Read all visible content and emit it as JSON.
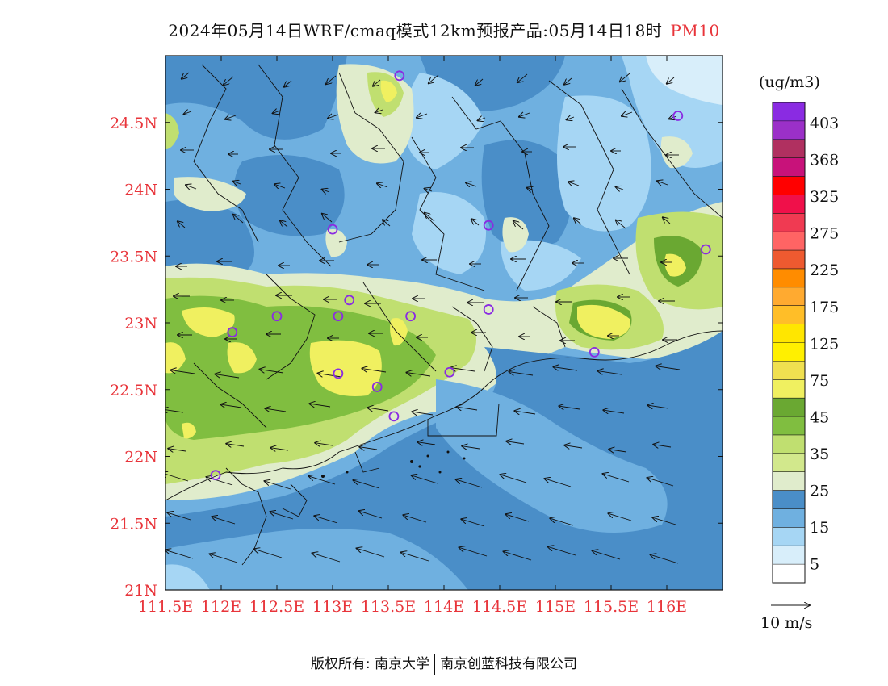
{
  "title": {
    "main": "2024年05月14日WRF/cmaq模式12km预报产品:05月14日18时",
    "species": "PM10"
  },
  "map": {
    "lon_ticks": [
      "111.5E",
      "112E",
      "112.5E",
      "113E",
      "113.5E",
      "114E",
      "114.5E",
      "115E",
      "115.5E",
      "116E"
    ],
    "lat_ticks": [
      "21N",
      "21.5N",
      "22N",
      "22.5N",
      "23N",
      "23.5N",
      "24N",
      "24.5N"
    ],
    "lon_range": [
      111.5,
      116.5
    ],
    "lat_range": [
      21.0,
      25.0
    ]
  },
  "legend": {
    "unit": "(ug/m3)",
    "levels": [
      "403",
      "368",
      "325",
      "275",
      "225",
      "175",
      "125",
      "75",
      "45",
      "35",
      "25",
      "15",
      "5"
    ],
    "colors": [
      "#8a2be2",
      "#9b30c8",
      "#b03060",
      "#c8127a",
      "#ff0000",
      "#f0104a",
      "#f03a52",
      "#ff6464",
      "#ee5a30",
      "#ff8c00",
      "#ffaa30",
      "#ffbe28",
      "#ffe600",
      "#fff000",
      "#f0e050",
      "#f0f060",
      "#6aa832",
      "#80be40",
      "#c0df70",
      "#d2e88c",
      "#e0eccc",
      "#4a8ec8",
      "#6fb0e0",
      "#a6d6f4",
      "#d8eefa",
      "#ffffff"
    ],
    "wind_scale_label": "10 m/s"
  },
  "footer": {
    "left": "版权所有: 南京大学",
    "right": "南京创蓝科技有限公司"
  },
  "stations": [
    {
      "lon": 113.6,
      "lat": 24.85
    },
    {
      "lon": 116.1,
      "lat": 24.55
    },
    {
      "lon": 113.0,
      "lat": 23.7
    },
    {
      "lon": 114.4,
      "lat": 23.73
    },
    {
      "lon": 116.35,
      "lat": 23.55
    },
    {
      "lon": 112.5,
      "lat": 23.05
    },
    {
      "lon": 113.05,
      "lat": 23.05
    },
    {
      "lon": 113.15,
      "lat": 23.17
    },
    {
      "lon": 113.7,
      "lat": 23.05
    },
    {
      "lon": 114.4,
      "lat": 23.1
    },
    {
      "lon": 112.1,
      "lat": 22.93
    },
    {
      "lon": 113.05,
      "lat": 22.62
    },
    {
      "lon": 113.4,
      "lat": 22.52
    },
    {
      "lon": 114.05,
      "lat": 22.63
    },
    {
      "lon": 115.35,
      "lat": 22.78
    },
    {
      "lon": 113.55,
      "lat": 22.3
    },
    {
      "lon": 111.95,
      "lat": 21.86
    }
  ]
}
